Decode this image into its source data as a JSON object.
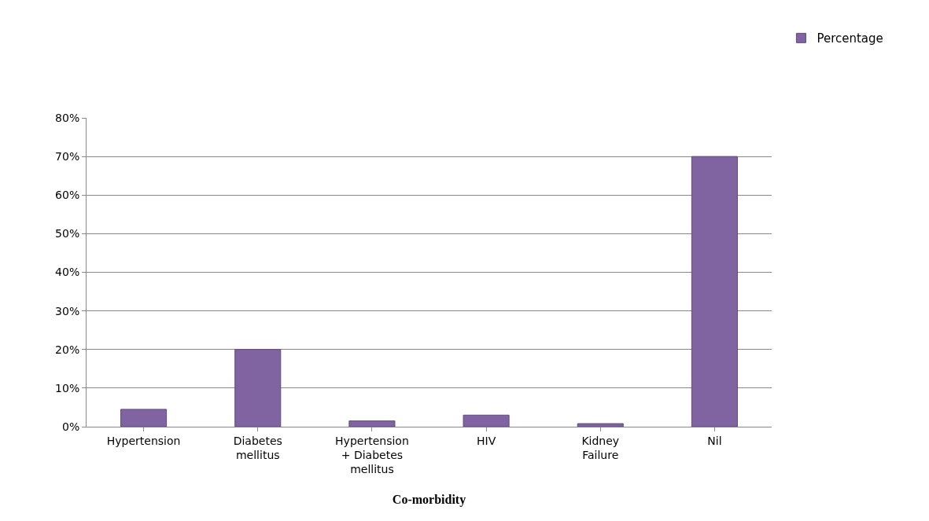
{
  "chart_data": {
    "type": "bar",
    "xlabel": "Co-morbidity",
    "categories": [
      "Hypertension",
      "Diabetes mellitus",
      "Hypertension + Diabetes mellitus",
      "HIV",
      "Kidney Failure",
      "Nil"
    ],
    "series": [
      {
        "name": "Percentage",
        "color": "#8064a2",
        "values": [
          4.5,
          20,
          1.5,
          3,
          0.8,
          70
        ]
      }
    ],
    "ylim": [
      0,
      80
    ],
    "yticks": [
      {
        "value": 0,
        "label": "0%"
      },
      {
        "value": 10,
        "label": "10%"
      },
      {
        "value": 20,
        "label": "20%"
      },
      {
        "value": 30,
        "label": "30%"
      },
      {
        "value": 40,
        "label": "40%"
      },
      {
        "value": 50,
        "label": "50%"
      },
      {
        "value": 60,
        "label": "60%"
      },
      {
        "value": 70,
        "label": "70%"
      },
      {
        "value": 80,
        "label": "80%"
      }
    ],
    "grid": "y",
    "legend": "top right"
  }
}
